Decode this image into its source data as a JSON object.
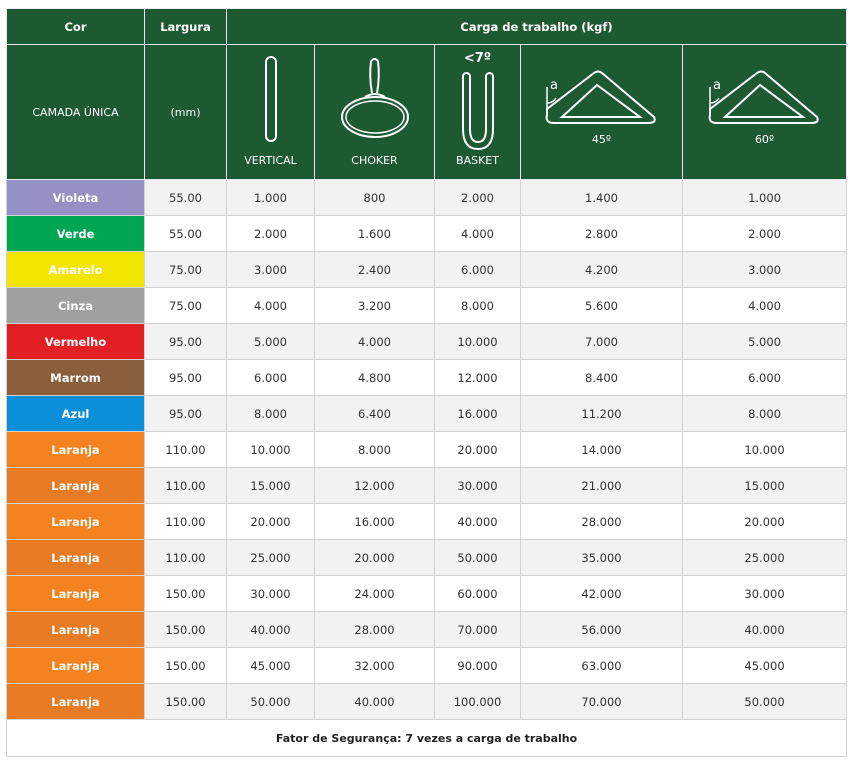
{
  "header": {
    "col_cor": "Cor",
    "col_largura": "Largura",
    "col_carga": "Carga de trabalho (kgf)",
    "camada": "CAMADA ÚNICA",
    "unit": "(mm)",
    "vertical": "VERTICAL",
    "choker": "CHOKER",
    "basket": "BASKET",
    "basket_angle": "<7º",
    "angle_a": "a",
    "deg45": "45º",
    "deg60": "60º"
  },
  "colors": {
    "header_bg": "#1d5a32",
    "Violeta": "#9691c4",
    "Verde": "#00a651",
    "Amarelo": "#f2e600",
    "Cinza": "#a0a0a0",
    "Vermelho": "#e31e24",
    "Marrom": "#8b5e3c",
    "Azul": "#0a8fd8",
    "Laranja_a": "#f58220",
    "Laranja_b": "#e87b23"
  },
  "rows": [
    {
      "cor": "Violeta",
      "largura": "55.00",
      "vertical": "1.000",
      "choker": "800",
      "basket": "2.000",
      "a45": "1.400",
      "a60": "1.000"
    },
    {
      "cor": "Verde",
      "largura": "55.00",
      "vertical": "2.000",
      "choker": "1.600",
      "basket": "4.000",
      "a45": "2.800",
      "a60": "2.000"
    },
    {
      "cor": "Amarelo",
      "largura": "75.00",
      "vertical": "3.000",
      "choker": "2.400",
      "basket": "6.000",
      "a45": "4.200",
      "a60": "3.000"
    },
    {
      "cor": "Cinza",
      "largura": "75.00",
      "vertical": "4.000",
      "choker": "3.200",
      "basket": "8.000",
      "a45": "5.600",
      "a60": "4.000"
    },
    {
      "cor": "Vermelho",
      "largura": "95.00",
      "vertical": "5.000",
      "choker": "4.000",
      "basket": "10.000",
      "a45": "7.000",
      "a60": "5.000"
    },
    {
      "cor": "Marrom",
      "largura": "95.00",
      "vertical": "6.000",
      "choker": "4.800",
      "basket": "12.000",
      "a45": "8.400",
      "a60": "6.000"
    },
    {
      "cor": "Azul",
      "largura": "95.00",
      "vertical": "8.000",
      "choker": "6.400",
      "basket": "16.000",
      "a45": "11.200",
      "a60": "8.000"
    },
    {
      "cor": "Laranja",
      "largura": "110.00",
      "vertical": "10.000",
      "choker": "8.000",
      "basket": "20.000",
      "a45": "14.000",
      "a60": "10.000"
    },
    {
      "cor": "Laranja",
      "largura": "110.00",
      "vertical": "15.000",
      "choker": "12.000",
      "basket": "30.000",
      "a45": "21.000",
      "a60": "15.000"
    },
    {
      "cor": "Laranja",
      "largura": "110.00",
      "vertical": "20.000",
      "choker": "16.000",
      "basket": "40.000",
      "a45": "28.000",
      "a60": "20.000"
    },
    {
      "cor": "Laranja",
      "largura": "110.00",
      "vertical": "25.000",
      "choker": "20.000",
      "basket": "50.000",
      "a45": "35.000",
      "a60": "25.000"
    },
    {
      "cor": "Laranja",
      "largura": "150.00",
      "vertical": "30.000",
      "choker": "24.000",
      "basket": "60.000",
      "a45": "42.000",
      "a60": "30.000"
    },
    {
      "cor": "Laranja",
      "largura": "150.00",
      "vertical": "40.000",
      "choker": "28.000",
      "basket": "70.000",
      "a45": "56.000",
      "a60": "40.000"
    },
    {
      "cor": "Laranja",
      "largura": "150.00",
      "vertical": "45.000",
      "choker": "32.000",
      "basket": "90.000",
      "a45": "63.000",
      "a60": "45.000"
    },
    {
      "cor": "Laranja",
      "largura": "150.00",
      "vertical": "50.000",
      "choker": "40.000",
      "basket": "100.000",
      "a45": "70.000",
      "a60": "50.000"
    }
  ],
  "footer": "Fator de Segurança: 7 vezes a carga de trabalho"
}
